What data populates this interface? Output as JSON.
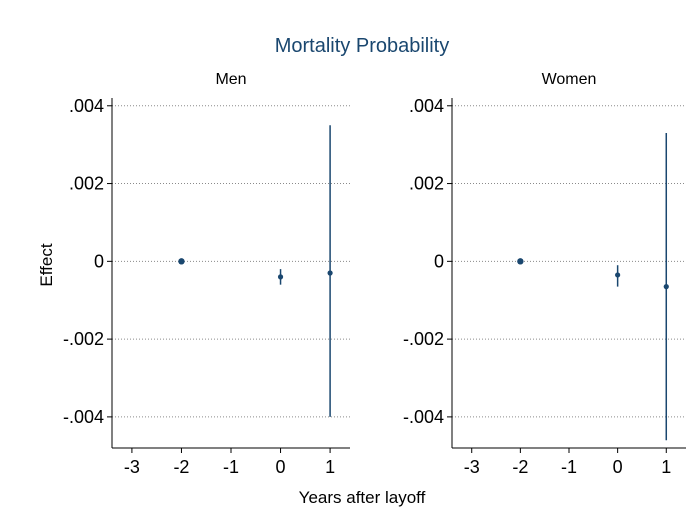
{
  "chart_data": {
    "type": "scatter",
    "title": "Mortality Probability",
    "xlabel": "Years after layoff",
    "ylabel": "Effect",
    "xlim": [
      -3.2,
      1.2
    ],
    "ylim": [
      -0.0048,
      0.0042
    ],
    "xticks": [
      -3,
      -2,
      -1,
      0,
      1
    ],
    "xtick_labels": [
      "-3",
      "-2",
      "-1",
      "0",
      "1"
    ],
    "yticks": [
      0.004,
      0.002,
      0,
      -0.002,
      -0.004
    ],
    "ytick_labels": [
      ".004",
      ".002",
      "0",
      "-.002",
      "-.004"
    ],
    "grid": "horizontal-dotted",
    "marker_color": "#1a476f",
    "title_color": "#1a476f",
    "panels": [
      {
        "name": "Men",
        "points": [
          {
            "x": -2,
            "y": 0.0,
            "lo": 0.0,
            "hi": 0.0
          },
          {
            "x": 0,
            "y": -0.0004,
            "lo": -0.0006,
            "hi": -0.0002
          },
          {
            "x": 1,
            "y": -0.0003,
            "lo": -0.004,
            "hi": 0.0035
          }
        ]
      },
      {
        "name": "Women",
        "points": [
          {
            "x": -2,
            "y": 0.0,
            "lo": 0.0,
            "hi": 0.0
          },
          {
            "x": 0,
            "y": -0.00035,
            "lo": -0.00065,
            "hi": -0.0001
          },
          {
            "x": 1,
            "y": -0.00065,
            "lo": -0.0046,
            "hi": 0.0033
          }
        ]
      }
    ]
  }
}
